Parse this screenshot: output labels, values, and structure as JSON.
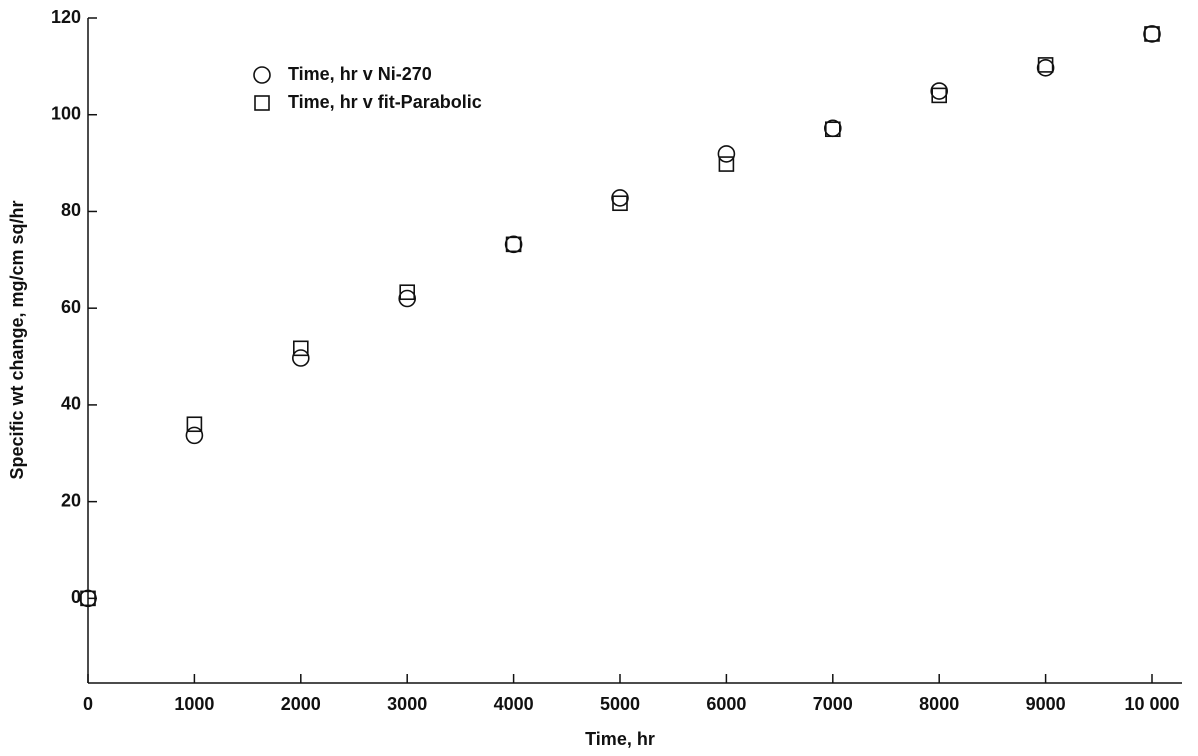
{
  "chart_data": {
    "type": "scatter",
    "x_label": "Time, hr",
    "y_label": "Specific wt change, mg/cm sq/hr",
    "x": [
      0,
      1000,
      2000,
      3000,
      4000,
      5000,
      6000,
      7000,
      8000,
      9000,
      10000
    ],
    "series": [
      {
        "name": "Time, hr v Ni-270",
        "color": "#111111",
        "marker": "circle",
        "values": [
          0,
          33.7,
          49.7,
          62,
          73.2,
          82.8,
          91.9,
          97.2,
          104.9,
          109.7,
          116.7
        ]
      },
      {
        "name": "Time, hr v fit-Parabolic",
        "color": "#111111",
        "marker": "square",
        "values": [
          0,
          36,
          51.7,
          63.3,
          73.2,
          81.7,
          89.8,
          97,
          104,
          110.3,
          116.7
        ]
      }
    ],
    "xlim": [
      0,
      10000
    ],
    "xticks": [
      0,
      1000,
      2000,
      3000,
      4000,
      5000,
      6000,
      7000,
      8000,
      9000,
      {
        "value": 10000,
        "label": "10 000"
      }
    ],
    "ylim": [
      -17.5,
      120
    ],
    "yticks": [
      0,
      20,
      40,
      60,
      80,
      100,
      120
    ],
    "grid": false,
    "legend": "top-left"
  }
}
